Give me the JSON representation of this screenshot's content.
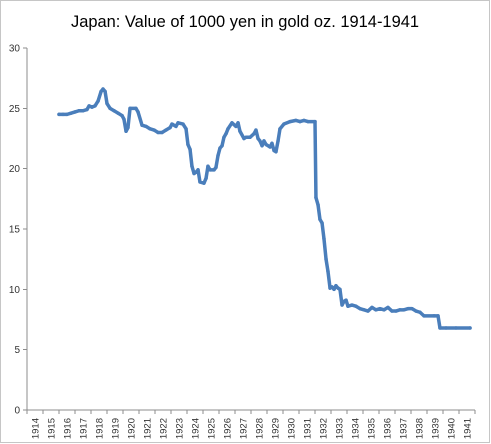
{
  "chart_data": {
    "type": "line",
    "title": "Japan: Value of 1000 yen in gold oz. 1914-1941",
    "x_tick_labels": [
      "1914",
      "1915",
      "1916",
      "1917",
      "1918",
      "1919",
      "1920",
      "1921",
      "1922",
      "1923",
      "1924",
      "1925",
      "1926",
      "1927",
      "1928",
      "1929",
      "1930",
      "1931",
      "1932",
      "1933",
      "1934",
      "1935",
      "1936",
      "1937",
      "1938",
      "1939",
      "1940",
      "1941"
    ],
    "xlim": [
      1914,
      1942
    ],
    "y_ticks": [
      0,
      5,
      10,
      15,
      20,
      25,
      30
    ],
    "ylim": [
      0,
      30
    ],
    "grid": false,
    "legend": "none",
    "series": [
      {
        "color": "#4a7ebb",
        "points": [
          [
            1916.0,
            24.5
          ],
          [
            1916.25,
            24.5
          ],
          [
            1916.5,
            24.5
          ],
          [
            1916.75,
            24.6
          ],
          [
            1917.0,
            24.7
          ],
          [
            1917.25,
            24.8
          ],
          [
            1917.5,
            24.8
          ],
          [
            1917.75,
            24.9
          ],
          [
            1917.88,
            25.2
          ],
          [
            1918.06,
            25.1
          ],
          [
            1918.25,
            25.2
          ],
          [
            1918.44,
            25.6
          ],
          [
            1918.63,
            26.4
          ],
          [
            1918.75,
            26.6
          ],
          [
            1918.88,
            26.4
          ],
          [
            1919.0,
            25.4
          ],
          [
            1919.19,
            25.0
          ],
          [
            1919.44,
            24.8
          ],
          [
            1919.69,
            24.6
          ],
          [
            1919.94,
            24.4
          ],
          [
            1920.06,
            24.1
          ],
          [
            1920.19,
            23.1
          ],
          [
            1920.31,
            23.4
          ],
          [
            1920.44,
            25.0
          ],
          [
            1920.81,
            25.0
          ],
          [
            1920.94,
            24.7
          ],
          [
            1921.19,
            23.6
          ],
          [
            1921.44,
            23.5
          ],
          [
            1921.69,
            23.3
          ],
          [
            1921.94,
            23.2
          ],
          [
            1922.19,
            23.0
          ],
          [
            1922.44,
            23.0
          ],
          [
            1922.69,
            23.2
          ],
          [
            1922.94,
            23.4
          ],
          [
            1923.06,
            23.7
          ],
          [
            1923.31,
            23.5
          ],
          [
            1923.44,
            23.8
          ],
          [
            1923.75,
            23.7
          ],
          [
            1923.94,
            23.3
          ],
          [
            1924.06,
            22.0
          ],
          [
            1924.19,
            21.6
          ],
          [
            1924.31,
            20.2
          ],
          [
            1924.44,
            19.6
          ],
          [
            1924.56,
            19.7
          ],
          [
            1924.69,
            19.9
          ],
          [
            1924.81,
            18.9
          ],
          [
            1925.06,
            18.8
          ],
          [
            1925.19,
            19.2
          ],
          [
            1925.31,
            20.2
          ],
          [
            1925.44,
            19.9
          ],
          [
            1925.69,
            19.9
          ],
          [
            1925.81,
            20.1
          ],
          [
            1925.94,
            21.1
          ],
          [
            1926.06,
            21.7
          ],
          [
            1926.19,
            21.9
          ],
          [
            1926.31,
            22.6
          ],
          [
            1926.44,
            22.9
          ],
          [
            1926.56,
            23.3
          ],
          [
            1926.81,
            23.8
          ],
          [
            1927.06,
            23.5
          ],
          [
            1927.19,
            23.8
          ],
          [
            1927.31,
            23.1
          ],
          [
            1927.56,
            22.5
          ],
          [
            1927.69,
            22.6
          ],
          [
            1927.94,
            22.6
          ],
          [
            1928.19,
            22.9
          ],
          [
            1928.31,
            23.2
          ],
          [
            1928.44,
            22.5
          ],
          [
            1928.56,
            22.3
          ],
          [
            1928.69,
            21.9
          ],
          [
            1928.81,
            22.3
          ],
          [
            1928.94,
            22.0
          ],
          [
            1929.19,
            21.8
          ],
          [
            1929.31,
            22.1
          ],
          [
            1929.44,
            21.5
          ],
          [
            1929.56,
            21.4
          ],
          [
            1929.69,
            22.3
          ],
          [
            1929.81,
            23.3
          ],
          [
            1930.06,
            23.7
          ],
          [
            1930.44,
            23.9
          ],
          [
            1930.81,
            24.0
          ],
          [
            1931.06,
            23.9
          ],
          [
            1931.31,
            24.0
          ],
          [
            1931.56,
            23.9
          ],
          [
            1932.0,
            23.9
          ],
          [
            1932.06,
            17.6
          ],
          [
            1932.19,
            17.0
          ],
          [
            1932.31,
            15.8
          ],
          [
            1932.44,
            15.5
          ],
          [
            1932.56,
            14.2
          ],
          [
            1932.69,
            12.5
          ],
          [
            1932.81,
            11.5
          ],
          [
            1932.94,
            10.1
          ],
          [
            1933.06,
            10.2
          ],
          [
            1933.19,
            10.0
          ],
          [
            1933.31,
            10.3
          ],
          [
            1933.44,
            10.1
          ],
          [
            1933.56,
            10.0
          ],
          [
            1933.69,
            8.7
          ],
          [
            1933.81,
            9.0
          ],
          [
            1933.94,
            9.1
          ],
          [
            1934.06,
            8.6
          ],
          [
            1934.31,
            8.7
          ],
          [
            1934.56,
            8.6
          ],
          [
            1934.81,
            8.4
          ],
          [
            1935.06,
            8.3
          ],
          [
            1935.31,
            8.2
          ],
          [
            1935.56,
            8.5
          ],
          [
            1935.81,
            8.3
          ],
          [
            1936.06,
            8.4
          ],
          [
            1936.31,
            8.3
          ],
          [
            1936.56,
            8.5
          ],
          [
            1936.81,
            8.2
          ],
          [
            1937.06,
            8.2
          ],
          [
            1937.31,
            8.3
          ],
          [
            1937.56,
            8.3
          ],
          [
            1937.81,
            8.4
          ],
          [
            1938.06,
            8.4
          ],
          [
            1938.31,
            8.2
          ],
          [
            1938.56,
            8.1
          ],
          [
            1938.81,
            7.8
          ],
          [
            1939.44,
            7.8
          ],
          [
            1939.69,
            7.8
          ],
          [
            1939.81,
            6.8
          ],
          [
            1940.19,
            6.8
          ],
          [
            1940.81,
            6.8
          ],
          [
            1941.69,
            6.8
          ]
        ]
      }
    ]
  }
}
